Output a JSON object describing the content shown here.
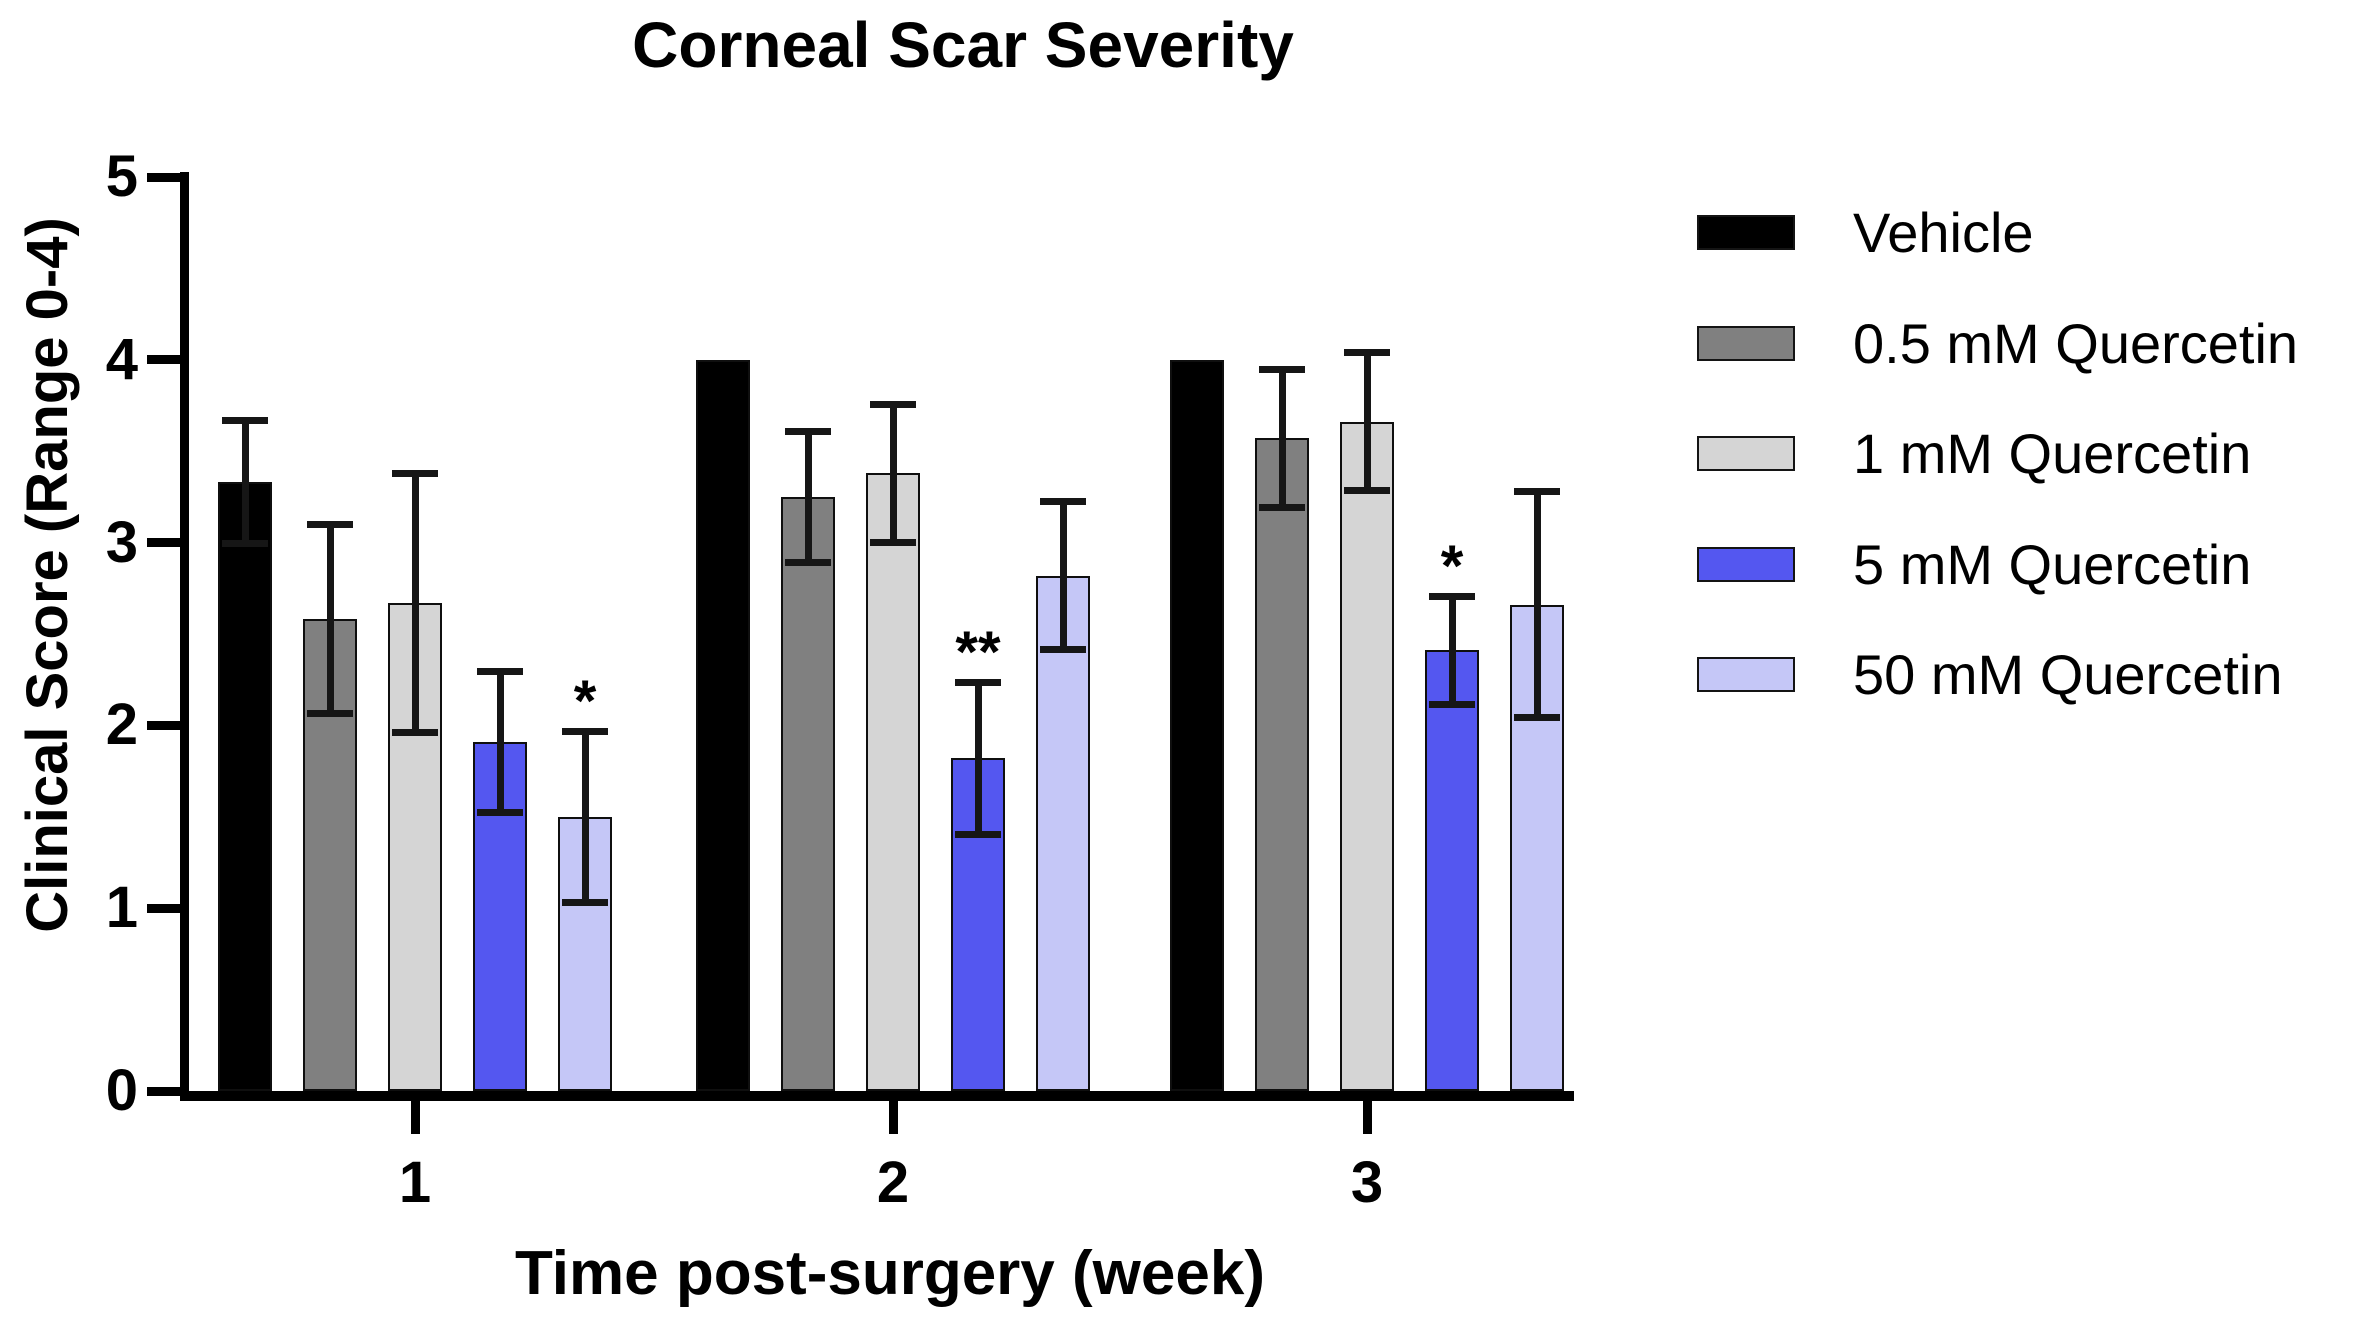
{
  "title": "Corneal Scar Severity",
  "axes": {
    "y_label": "Clinical Score (Range 0-4)",
    "x_label": "Time post-surgery (week)",
    "y_tick_labels": [
      "0",
      "1",
      "2",
      "3",
      "4",
      "5"
    ],
    "x_tick_labels": [
      "1",
      "2",
      "3"
    ]
  },
  "chart_data": {
    "type": "bar",
    "title": "Corneal Scar Severity",
    "xlabel": "Time post-surgery (week)",
    "ylabel": "Clinical Score (Range 0-4)",
    "ylim": [
      0,
      5
    ],
    "grid": false,
    "legend_position": "right",
    "error_bars": true,
    "categories": [
      "1",
      "2",
      "3"
    ],
    "series": [
      {
        "name": "Vehicle",
        "color": "#000000",
        "values": [
          3.33,
          4.0,
          4.0
        ],
        "errors": [
          0.34,
          0,
          0
        ],
        "sig": [
          "",
          "",
          ""
        ]
      },
      {
        "name": "0.5 mM Quercetin",
        "color": "#808080",
        "values": [
          2.58,
          3.25,
          3.57
        ],
        "errors": [
          0.52,
          0.36,
          0.38
        ],
        "sig": [
          "",
          "",
          ""
        ]
      },
      {
        "name": "1 mM Quercetin",
        "color": "#d5d5d5",
        "values": [
          2.67,
          3.38,
          3.66
        ],
        "errors": [
          0.71,
          0.38,
          0.38
        ],
        "sig": [
          "",
          "",
          ""
        ]
      },
      {
        "name": "5 mM Quercetin",
        "color": "#5457f0",
        "values": [
          1.91,
          1.82,
          2.41
        ],
        "errors": [
          0.39,
          0.42,
          0.3
        ],
        "sig": [
          "",
          "**",
          "*"
        ]
      },
      {
        "name": "50 mM Quercetin",
        "color": "#c5c7f7",
        "values": [
          1.5,
          2.82,
          2.66
        ],
        "errors": [
          0.47,
          0.41,
          0.62
        ],
        "sig": [
          "*",
          "",
          ""
        ]
      }
    ]
  }
}
